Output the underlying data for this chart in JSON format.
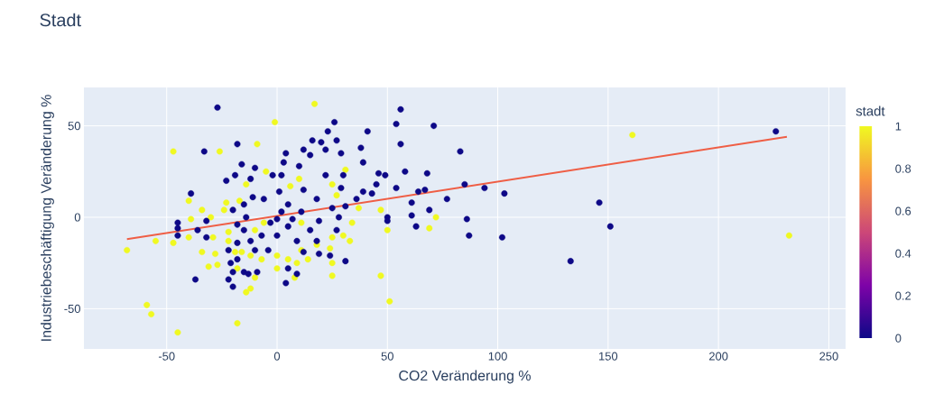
{
  "chart_data": {
    "type": "scatter",
    "title": "Stadt",
    "xlabel": "CO2 Veränderung %",
    "ylabel": "Industriebeschäftigung Veränderung %",
    "clabel": "stadt",
    "xlim": [
      -87.5,
      257.6
    ],
    "ylim": [
      -72,
      71
    ],
    "xticks": [
      -50,
      0,
      50,
      100,
      150,
      200,
      250
    ],
    "yticks": [
      -50,
      0,
      50
    ],
    "clim": [
      0,
      1
    ],
    "cticks": [
      0,
      0.2,
      0.4,
      0.6,
      0.8,
      1
    ],
    "grid": true,
    "series": [
      {
        "color": "#f0f921",
        "x": [
          -68,
          -55,
          -47,
          -47,
          -59,
          -57,
          -45,
          -26,
          -9,
          -1,
          -40,
          -39,
          -40,
          -34,
          -31,
          -34,
          -30,
          -29,
          -28,
          -27,
          -22,
          -22,
          -23,
          -24,
          -18,
          -18,
          -14,
          -12,
          -19,
          -16,
          -12,
          -10,
          -7,
          -5,
          -17,
          -10,
          -14,
          -6,
          0,
          17,
          31,
          10,
          6,
          25,
          27,
          37,
          47,
          34,
          50,
          25,
          30,
          33,
          24,
          11,
          5,
          9,
          14,
          25,
          25,
          8,
          0,
          47,
          51,
          72,
          69,
          11,
          18,
          161,
          232
        ],
        "values": [
          -18,
          -13,
          36,
          -14,
          -48,
          -53,
          -63,
          36,
          40,
          52,
          9,
          -1,
          -11,
          -19,
          -27,
          4,
          0,
          -11,
          -20,
          -26,
          -8,
          -13,
          8,
          4,
          -28,
          -58,
          -41,
          -39,
          -19,
          -19,
          -21,
          -33,
          -23,
          25,
          9,
          -7,
          18,
          -3,
          -28,
          62,
          26,
          21,
          17,
          18,
          12,
          5,
          4,
          -3,
          -7,
          -11,
          -10,
          -13,
          -17,
          -18,
          -23,
          -25,
          -23,
          -25,
          -32,
          -33,
          -21,
          -32,
          -46,
          0,
          -6,
          -3,
          -15,
          45,
          -10
        ]
      },
      {
        "color": "#0d0887",
        "x": [
          -27,
          -33,
          -18,
          -16,
          -39,
          -45,
          -45,
          -45,
          -36,
          -32,
          -32,
          -37,
          -23,
          -19,
          -10,
          -12,
          -20,
          -15,
          -11,
          -6,
          -2,
          -14,
          -18,
          -15,
          -12,
          -7,
          -3,
          -22,
          -18,
          -21,
          -20,
          -22,
          -20,
          -15,
          -13,
          -9,
          -18,
          -10,
          -4,
          56,
          54,
          71,
          56,
          26,
          41,
          23,
          16,
          20,
          27,
          12,
          22,
          29,
          38,
          39,
          4,
          3,
          10,
          15,
          22,
          30,
          46,
          49,
          58,
          68,
          45,
          54,
          64,
          67,
          77,
          69,
          61,
          61,
          63,
          50,
          50,
          39,
          43,
          36,
          31,
          25,
          29,
          18,
          12,
          2,
          1,
          5,
          11,
          19,
          28,
          5,
          15,
          27,
          0,
          9,
          18,
          12,
          19,
          24,
          31,
          5,
          9,
          4,
          0,
          2,
          7,
          83,
          85,
          94,
          103,
          86,
          87,
          102,
          133,
          146,
          151,
          226
        ],
        "values": [
          60,
          36,
          40,
          29,
          13,
          -3,
          -6,
          -10,
          -7,
          -2,
          -11,
          -34,
          20,
          23,
          27,
          21,
          4,
          7,
          11,
          10,
          23,
          0,
          -4,
          -7,
          -13,
          -10,
          -3,
          -18,
          -14,
          -25,
          -30,
          -34,
          -38,
          -30,
          -31,
          -30,
          -23,
          -18,
          -18,
          59,
          51,
          50,
          40,
          52,
          47,
          47,
          42,
          41,
          42,
          37,
          37,
          35,
          38,
          30,
          35,
          30,
          28,
          34,
          23,
          23,
          24,
          23,
          25,
          24,
          18,
          16,
          14,
          15,
          10,
          4,
          8,
          1,
          -5,
          0,
          -2,
          14,
          13,
          10,
          6,
          5,
          16,
          10,
          15,
          23,
          14,
          7,
          3,
          -2,
          0,
          -5,
          -7,
          -7,
          -10,
          -13,
          -13,
          -19,
          -20,
          -21,
          -24,
          -28,
          -31,
          -36,
          -1,
          3,
          -1,
          36,
          18,
          16,
          13,
          -1,
          -10,
          -11,
          -24,
          8,
          -5,
          47
        ]
      },
      {
        "type": "line",
        "color": "#ef5e45",
        "x": [
          -68,
          231
        ],
        "values": [
          -12,
          44
        ]
      }
    ]
  }
}
